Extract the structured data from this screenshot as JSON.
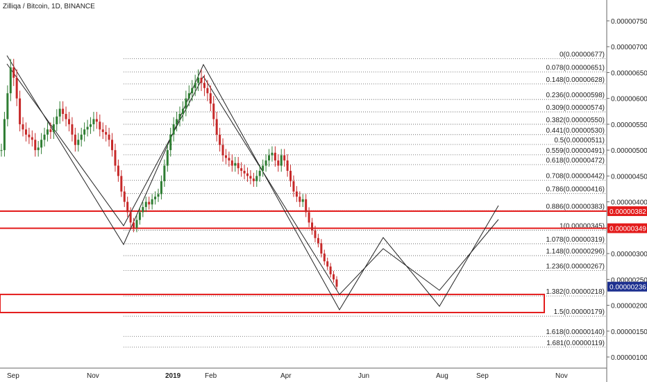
{
  "header": {
    "title": "Zilliqa / Bitcoin, 1D, BINANCE"
  },
  "chart_data": {
    "type": "candlestick",
    "title": "Zilliqa / Bitcoin, 1D, BINANCE",
    "ylim": [
      8.8e-07,
      7.85e-06
    ],
    "y_ticks": [
      "0.00000750",
      "0.00000700",
      "0.00000650",
      "0.00000600",
      "0.00000550",
      "0.00000500",
      "0.00000450",
      "0.00000400",
      "0.00000350",
      "0.00000300",
      "0.00000250",
      "0.00000200",
      "0.00000150",
      "0.00000100"
    ],
    "x_ticks": [
      "Sep",
      "Nov",
      "2019",
      "Feb",
      "Apr",
      "Jun",
      "Aug",
      "Sep",
      "Nov"
    ],
    "fib_levels": [
      {
        "label": "0(0.00000677)",
        "price": 6.77e-06
      },
      {
        "label": "0.078(0.00000651)",
        "price": 6.51e-06
      },
      {
        "label": "0.148(0.00000628)",
        "price": 6.28e-06
      },
      {
        "label": "0.236(0.00000598)",
        "price": 5.98e-06
      },
      {
        "label": "0.309(0.00000574)",
        "price": 5.74e-06
      },
      {
        "label": "0.382(0.00000550)",
        "price": 5.5e-06
      },
      {
        "label": "0.441(0.00000530)",
        "price": 5.3e-06
      },
      {
        "label": "0.5(0.00000511)",
        "price": 5.11e-06
      },
      {
        "label": "0.559(0.00000491)",
        "price": 4.91e-06
      },
      {
        "label": "0.618(0.00000472)",
        "price": 4.72e-06
      },
      {
        "label": "0.708(0.00000442)",
        "price": 4.42e-06
      },
      {
        "label": "0.786(0.00000416)",
        "price": 4.16e-06
      },
      {
        "label": "0.886(0.00000383)",
        "price": 3.83e-06
      },
      {
        "label": "1(0.00000345)",
        "price": 3.45e-06
      },
      {
        "label": "1.078(0.00000319)",
        "price": 3.19e-06
      },
      {
        "label": "1.148(0.00000296)",
        "price": 2.96e-06
      },
      {
        "label": "1.236(0.00000267)",
        "price": 2.67e-06
      },
      {
        "label": "1.382(0.00000218)",
        "price": 2.18e-06
      },
      {
        "label": "1.5(0.00000179)",
        "price": 1.79e-06
      },
      {
        "label": "1.618(0.00000140)",
        "price": 1.4e-06
      },
      {
        "label": "1.681(0.00000119)",
        "price": 1.19e-06
      }
    ],
    "price_tags": [
      {
        "label": "0.00000382",
        "price": 3.82e-06,
        "color": "#e31b1b"
      },
      {
        "label": "0.00000349",
        "price": 3.49e-06,
        "color": "#e31b1b"
      },
      {
        "label": "0.00000236",
        "price": 2.36e-06,
        "color": "#1c2f8f"
      }
    ],
    "horizontal_lines": [
      3.82e-06,
      3.49e-06
    ],
    "zone": {
      "top": 2.21e-06,
      "bottom": 1.86e-06
    },
    "close_series": [
      5e-06,
      5.6e-06,
      6.1e-06,
      6.6e-06,
      6.4e-06,
      6e-06,
      5.5e-06,
      5.4e-06,
      5.3e-06,
      5.25e-06,
      5.2e-06,
      5e-06,
      5.05e-06,
      5.2e-06,
      5.3e-06,
      5.4e-06,
      5.35e-06,
      5.5e-06,
      5.65e-06,
      5.8e-06,
      5.7e-06,
      5.6e-06,
      5.5e-06,
      5.3e-06,
      5.1e-06,
      5.2e-06,
      5.3e-06,
      5.4e-06,
      5.45e-06,
      5.5e-06,
      5.6e-06,
      5.55e-06,
      5.4e-06,
      5.35e-06,
      5.3e-06,
      5.2e-06,
      5e-06,
      4.7e-06,
      4.5e-06,
      4.2e-06,
      4e-06,
      3.8e-06,
      3.6e-06,
      3.5e-06,
      3.65e-06,
      3.8e-06,
      3.9e-06,
      4e-06,
      3.95e-06,
      4.05e-06,
      4.1e-06,
      4.15e-06,
      4.4e-06,
      4.7e-06,
      5e-06,
      5.3e-06,
      5.5e-06,
      5.6e-06,
      5.7e-06,
      5.8e-06,
      6e-06,
      6.1e-06,
      6.2e-06,
      6.3e-06,
      6.4e-06,
      6.3e-06,
      6.2e-06,
      6.1e-06,
      5.9e-06,
      5.6e-06,
      5.3e-06,
      5.1e-06,
      4.9e-06,
      4.85e-06,
      4.8e-06,
      4.7e-06,
      4.75e-06,
      4.65e-06,
      4.6e-06,
      4.55e-06,
      4.5e-06,
      4.45e-06,
      4.4e-06,
      4.5e-06,
      4.6e-06,
      4.7e-06,
      4.8e-06,
      4.9e-06,
      4.95e-06,
      4.8e-06,
      4.7e-06,
      4.9e-06,
      4.8e-06,
      4.6e-06,
      4.4e-06,
      4.2e-06,
      4.1e-06,
      4e-06,
      4.05e-06,
      3.8e-06,
      3.6e-06,
      3.45e-06,
      3.3e-06,
      3.2e-06,
      3e-06,
      2.85e-06,
      2.75e-06,
      2.6e-06,
      2.5e-06,
      2.36e-06
    ]
  }
}
